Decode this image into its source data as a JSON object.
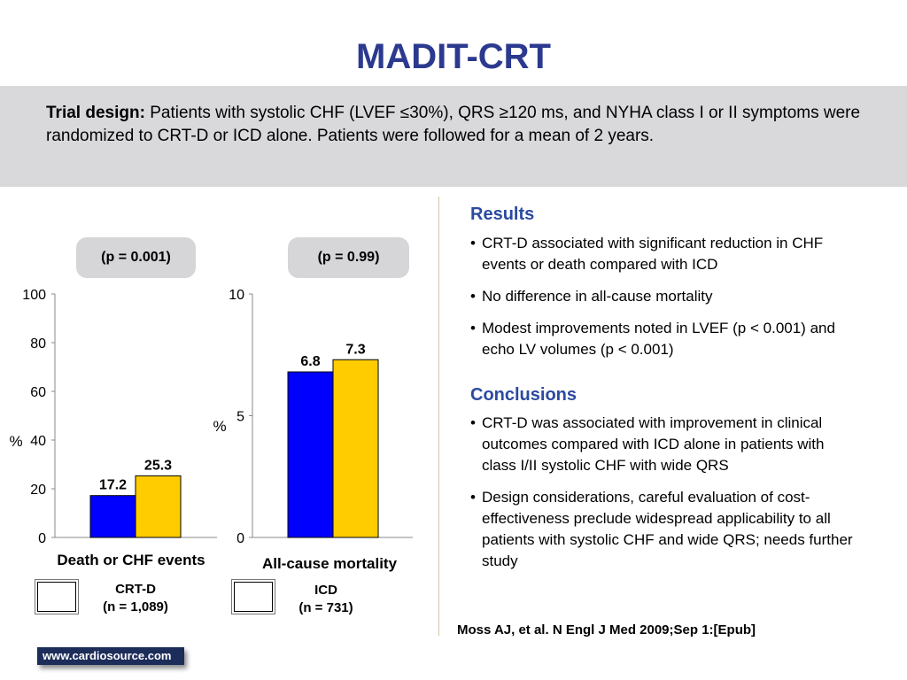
{
  "title": "MADIT-CRT",
  "trial_design": {
    "label": "Trial design:",
    "text": " Patients with systolic CHF (LVEF ≤30%), QRS ≥120 ms, and NYHA class I or II symptoms were randomized to CRT-D or ICD alone. Patients were followed for a mean of 2 years."
  },
  "colors": {
    "crtd": "#0000ff",
    "icd": "#ffcc00",
    "heading": "#2b3a8f",
    "section": "#2b4aa0"
  },
  "chart_data": [
    {
      "type": "bar",
      "title": "Death or CHF events",
      "ylabel": "%",
      "ylim": [
        0,
        100
      ],
      "yticks": [
        0,
        20,
        40,
        60,
        80,
        100
      ],
      "annotation": "(p = 0.001)",
      "series": [
        {
          "name": "CRT-D",
          "values": [
            17.2
          ]
        },
        {
          "name": "ICD",
          "values": [
            25.3
          ]
        }
      ]
    },
    {
      "type": "bar",
      "title": "All-cause mortality",
      "ylabel": "%",
      "ylim": [
        0,
        10
      ],
      "yticks": [
        0,
        5,
        10
      ],
      "annotation": "(p = 0.99)",
      "series": [
        {
          "name": "CRT-D",
          "values": [
            6.8
          ]
        },
        {
          "name": "ICD",
          "values": [
            7.3
          ]
        }
      ]
    }
  ],
  "legend": {
    "crtd_line1": "CRT-D",
    "crtd_line2": "(n = 1,089)",
    "icd_line1": "ICD",
    "icd_line2": "(n = 731)"
  },
  "results": {
    "heading": "Results",
    "items": [
      "CRT-D associated with significant reduction in CHF events or death compared with ICD",
      "No difference in all-cause mortality",
      "Modest improvements noted in LVEF (p < 0.001) and echo LV volumes (p < 0.001)"
    ]
  },
  "conclusions": {
    "heading": "Conclusions",
    "items": [
      "CRT-D was associated with improvement in clinical outcomes compared with ICD alone in patients with class I/II systolic CHF with wide QRS",
      "Design considerations, careful evaluation of cost-effectiveness preclude widespread applicability to all patients with systolic CHF and wide QRS; needs further study"
    ]
  },
  "bullet_char": "•",
  "citation": "Moss AJ, et al. N Engl J Med 2009;Sep 1:[Epub]",
  "footer": "www.cardiosource.com"
}
